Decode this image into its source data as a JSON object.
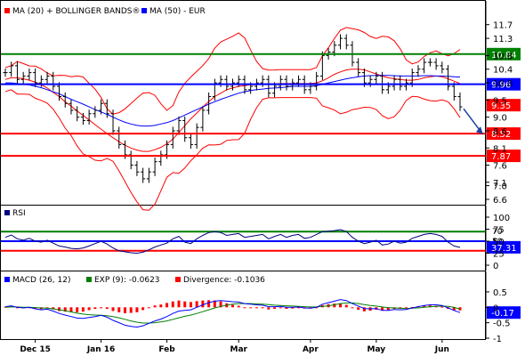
{
  "chart_data": [
    {
      "type": "candlestick",
      "legend": [
        {
          "label": "MA (20) + BOLLINGER BANDS®",
          "color": "#ff0000"
        },
        {
          "label": "MA (50) - EUR",
          "color": "#0000ff"
        }
      ],
      "ylim": [
        6.6,
        11.9
      ],
      "yticks": [
        "11.7",
        "11.3",
        "10.8",
        "10.4",
        "10.0",
        "9.5",
        "9.0",
        "8.6",
        "8.1",
        "7.6",
        "7.1",
        "7.0",
        "6.6"
      ],
      "ytick_values": [
        11.7,
        11.3,
        10.8,
        10.4,
        10.0,
        9.5,
        9.0,
        8.6,
        8.1,
        7.6,
        7.1,
        7.0,
        6.6
      ],
      "levels": [
        {
          "value": 10.84,
          "label": "10.84",
          "color": "#008000"
        },
        {
          "value": 9.96,
          "label": "9.96",
          "color": "#0000ff"
        },
        {
          "value": 8.52,
          "label": "8.52",
          "color": "#ff0000"
        },
        {
          "value": 7.87,
          "label": "7.87",
          "color": "#ff0000"
        }
      ],
      "last_price": {
        "value": 9.35,
        "label": "9.35",
        "color": "#ff0000"
      },
      "prices": [
        10.3,
        10.5,
        10.1,
        10.2,
        10.3,
        10.0,
        10.1,
        10.2,
        9.9,
        9.6,
        9.4,
        9.2,
        9.0,
        8.9,
        9.1,
        9.2,
        9.4,
        9.1,
        8.6,
        8.2,
        7.9,
        7.6,
        7.4,
        7.2,
        7.4,
        7.7,
        7.9,
        8.2,
        8.6,
        8.9,
        8.4,
        8.2,
        8.7,
        9.2,
        9.6,
        10.0,
        10.1,
        9.9,
        10.0,
        10.1,
        9.8,
        9.9,
        10.0,
        10.1,
        9.7,
        9.9,
        10.1,
        9.9,
        10.0,
        10.1,
        9.8,
        9.9,
        10.2,
        10.8,
        10.9,
        11.1,
        11.3,
        11.1,
        10.6,
        10.3,
        10.0,
        10.1,
        10.2,
        9.8,
        9.9,
        10.1,
        9.9,
        10.0,
        10.3,
        10.4,
        10.6,
        10.6,
        10.5,
        10.4,
        9.9,
        9.6,
        9.3
      ],
      "ma20": [
        10.1,
        10.15,
        10.15,
        10.12,
        10.08,
        10.02,
        9.95,
        9.85,
        9.72,
        9.6,
        9.45,
        9.32,
        9.18,
        9.05,
        8.92,
        8.78,
        8.65,
        8.52,
        8.4,
        8.28,
        8.18,
        8.1,
        8.04,
        8.0,
        8.0,
        8.05,
        8.12,
        8.22,
        8.36,
        8.55,
        8.75,
        8.95,
        9.12,
        9.3,
        9.45,
        9.6,
        9.7,
        9.8,
        9.85,
        9.9,
        9.92,
        9.95,
        9.95,
        9.97,
        9.97,
        9.97,
        9.98,
        9.98,
        9.98,
        9.98,
        9.98,
        9.98,
        10.0,
        10.06,
        10.15,
        10.25,
        10.32,
        10.38,
        10.4,
        10.4,
        10.38,
        10.32,
        10.26,
        10.2,
        10.15,
        10.12,
        10.1,
        10.08,
        10.08,
        10.1,
        10.15,
        10.18,
        10.2,
        10.18,
        10.12,
        10.05,
        9.98
      ],
      "ma50": [
        10.0,
        10.0,
        9.98,
        9.96,
        9.94,
        9.9,
        9.86,
        9.8,
        9.74,
        9.68,
        9.6,
        9.52,
        9.45,
        9.38,
        9.3,
        9.22,
        9.15,
        9.08,
        9.0,
        8.92,
        8.85,
        8.8,
        8.76,
        8.74,
        8.74,
        8.76,
        8.8,
        8.84,
        8.9,
        8.98,
        9.06,
        9.14,
        9.22,
        9.3,
        9.38,
        9.45,
        9.52,
        9.58,
        9.64,
        9.7,
        9.74,
        9.78,
        9.8,
        9.82,
        9.84,
        9.85,
        9.86,
        9.88,
        9.9,
        9.9,
        9.9,
        9.9,
        9.92,
        9.96,
        10.0,
        10.04,
        10.08,
        10.12,
        10.15,
        10.18,
        10.2,
        10.21,
        10.22,
        10.22,
        10.22,
        10.21,
        10.2,
        10.2,
        10.2,
        10.2,
        10.21,
        10.21,
        10.2,
        10.2,
        10.19,
        10.18,
        10.17
      ],
      "projection": {
        "from": 9.35,
        "to": 8.52
      }
    },
    {
      "type": "line",
      "title": "RSI",
      "ylim": [
        0,
        100
      ],
      "yticks": [
        "100",
        "75",
        "50",
        "25",
        "0"
      ],
      "ytick_values": [
        100,
        75,
        50,
        25,
        0
      ],
      "levels": [
        {
          "value": 70,
          "label": "70",
          "color": "#008000"
        },
        {
          "value": 50,
          "label": "50",
          "color": "#0000ff"
        },
        {
          "value": 30,
          "label": "30",
          "color": "#ff0000"
        }
      ],
      "last_value": {
        "value": 37.31,
        "label": "37.31",
        "color": "#0000ff"
      },
      "values": [
        58,
        63,
        55,
        52,
        56,
        50,
        48,
        52,
        46,
        40,
        38,
        35,
        34,
        36,
        40,
        45,
        50,
        44,
        36,
        30,
        28,
        26,
        25,
        27,
        32,
        38,
        42,
        46,
        55,
        60,
        48,
        45,
        55,
        62,
        68,
        70,
        68,
        62,
        64,
        66,
        58,
        60,
        62,
        64,
        55,
        60,
        64,
        58,
        62,
        64,
        56,
        58,
        64,
        70,
        71,
        72,
        74,
        70,
        58,
        50,
        45,
        48,
        52,
        42,
        44,
        50,
        46,
        48,
        56,
        60,
        64,
        66,
        64,
        60,
        48,
        40,
        37
      ]
    },
    {
      "type": "line",
      "legend": [
        {
          "label": "MACD (26, 12)",
          "color": "#0000ff"
        },
        {
          "label": "EXP (9): -0.0623",
          "color": "#008000"
        },
        {
          "label": "Divergence: -0.1036",
          "color": "#ff0000"
        }
      ],
      "ylim": [
        -1,
        0.7
      ],
      "yticks": [
        "0.5",
        "0",
        "-0.5",
        "-1"
      ],
      "ytick_values": [
        0.5,
        0,
        -0.5,
        -1
      ],
      "last_value": {
        "value": -0.17,
        "label": "-0.17",
        "color": "#0000ff"
      },
      "macd": [
        0.02,
        0.05,
        0.0,
        -0.02,
        0.0,
        -0.05,
        -0.08,
        -0.06,
        -0.12,
        -0.2,
        -0.25,
        -0.3,
        -0.35,
        -0.36,
        -0.33,
        -0.3,
        -0.26,
        -0.32,
        -0.42,
        -0.5,
        -0.58,
        -0.62,
        -0.64,
        -0.6,
        -0.52,
        -0.44,
        -0.38,
        -0.3,
        -0.2,
        -0.12,
        -0.1,
        -0.08,
        0.0,
        0.08,
        0.15,
        0.2,
        0.22,
        0.2,
        0.18,
        0.17,
        0.12,
        0.1,
        0.08,
        0.07,
        0.02,
        0.02,
        0.03,
        0.0,
        0.0,
        0.01,
        -0.02,
        -0.03,
        0.0,
        0.1,
        0.15,
        0.2,
        0.25,
        0.22,
        0.12,
        0.04,
        -0.04,
        -0.05,
        -0.04,
        -0.1,
        -0.1,
        -0.07,
        -0.08,
        -0.07,
        -0.02,
        0.02,
        0.06,
        0.08,
        0.08,
        0.06,
        -0.02,
        -0.1,
        -0.17
      ],
      "signal": [
        0.0,
        0.01,
        0.01,
        0.0,
        0.0,
        -0.01,
        -0.02,
        -0.03,
        -0.05,
        -0.08,
        -0.11,
        -0.15,
        -0.19,
        -0.22,
        -0.24,
        -0.25,
        -0.26,
        -0.27,
        -0.3,
        -0.34,
        -0.39,
        -0.44,
        -0.48,
        -0.51,
        -0.51,
        -0.5,
        -0.47,
        -0.44,
        -0.39,
        -0.34,
        -0.29,
        -0.25,
        -0.2,
        -0.14,
        -0.08,
        -0.02,
        0.03,
        0.07,
        0.1,
        0.12,
        0.12,
        0.12,
        0.11,
        0.1,
        0.09,
        0.07,
        0.06,
        0.05,
        0.04,
        0.03,
        0.02,
        0.01,
        0.01,
        0.03,
        0.05,
        0.08,
        0.12,
        0.14,
        0.14,
        0.12,
        0.09,
        0.06,
        0.04,
        0.01,
        -0.01,
        -0.02,
        -0.03,
        -0.04,
        -0.03,
        -0.02,
        0.0,
        0.02,
        0.03,
        0.04,
        0.03,
        0.0,
        -0.06
      ],
      "divergence": [
        0.02,
        0.04,
        -0.01,
        -0.02,
        0.0,
        -0.04,
        -0.06,
        -0.03,
        -0.07,
        -0.12,
        -0.14,
        -0.15,
        -0.16,
        -0.14,
        -0.09,
        -0.05,
        0.0,
        -0.05,
        -0.12,
        -0.16,
        -0.19,
        -0.18,
        -0.16,
        -0.09,
        -0.01,
        0.06,
        0.09,
        0.14,
        0.19,
        0.22,
        0.19,
        0.17,
        0.2,
        0.22,
        0.23,
        0.22,
        0.19,
        0.13,
        0.08,
        0.05,
        0.0,
        -0.02,
        -0.03,
        -0.03,
        -0.07,
        -0.05,
        -0.03,
        -0.05,
        -0.04,
        -0.02,
        -0.04,
        -0.04,
        -0.01,
        0.07,
        0.1,
        0.12,
        0.13,
        0.08,
        -0.02,
        -0.08,
        -0.13,
        -0.11,
        -0.08,
        -0.11,
        -0.09,
        -0.05,
        -0.05,
        -0.03,
        0.01,
        0.04,
        0.06,
        0.06,
        0.05,
        0.02,
        -0.05,
        -0.1,
        -0.1
      ]
    }
  ],
  "x_axis": {
    "labels": [
      "Dec 15",
      "Jan 16",
      "Feb",
      "Mar",
      "Apr",
      "May",
      "Jun"
    ],
    "label_index": [
      5,
      16,
      27,
      39,
      51,
      62,
      73
    ],
    "n": 77
  }
}
